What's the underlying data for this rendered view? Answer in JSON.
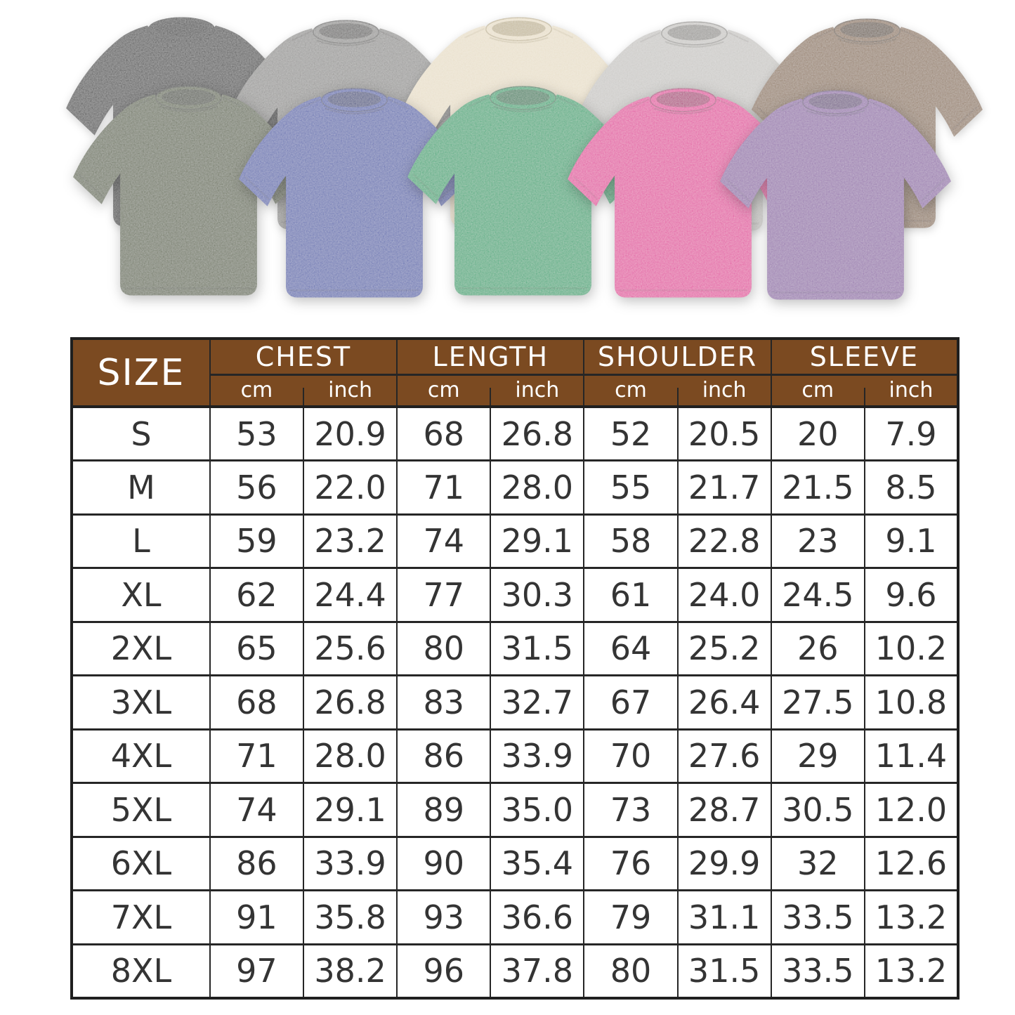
{
  "page": {
    "background": "#ffffff"
  },
  "hero": {
    "description": "ten acid-washed oversized t-shirts in two overlapping rows",
    "shirts": [
      {
        "name": "black",
        "row": "back",
        "color": "#2f2f2f",
        "shade": "#131313"
      },
      {
        "name": "gray",
        "row": "back",
        "color": "#8e8d8b",
        "shade": "#585755"
      },
      {
        "name": "cream",
        "row": "back",
        "color": "#e7ddc6",
        "shade": "#c0b392"
      },
      {
        "name": "light-gray",
        "row": "back",
        "color": "#c6c4c1",
        "shade": "#92908c"
      },
      {
        "name": "brown",
        "row": "back",
        "color": "#8a6e52",
        "shade": "#5c4733"
      },
      {
        "name": "olive",
        "row": "front",
        "color": "#566043",
        "shade": "#323b24"
      },
      {
        "name": "blue",
        "row": "front",
        "color": "#4c5caa",
        "shade": "#2c3877"
      },
      {
        "name": "green",
        "row": "front",
        "color": "#18a26c",
        "shade": "#0a744a"
      },
      {
        "name": "pink",
        "row": "front",
        "color": "#e1379a",
        "shade": "#a81d70"
      },
      {
        "name": "purple",
        "row": "front",
        "color": "#8d65a6",
        "shade": "#624379"
      }
    ]
  },
  "table": {
    "header_bg": "#7b4a21",
    "header_text_color": "#ffffff",
    "border_color": "#262626",
    "size_label": "SIZE",
    "groups": [
      {
        "label": "CHEST"
      },
      {
        "label": "LENGTH"
      },
      {
        "label": "SHOULDER"
      },
      {
        "label": "SLEEVE"
      }
    ],
    "unit_labels": [
      "cm",
      "inch"
    ],
    "rows": [
      {
        "size": "S",
        "values": [
          "53",
          "20.9",
          "68",
          "26.8",
          "52",
          "20.5",
          "20",
          "7.9"
        ]
      },
      {
        "size": "M",
        "values": [
          "56",
          "22.0",
          "71",
          "28.0",
          "55",
          "21.7",
          "21.5",
          "8.5"
        ]
      },
      {
        "size": "L",
        "values": [
          "59",
          "23.2",
          "74",
          "29.1",
          "58",
          "22.8",
          "23",
          "9.1"
        ]
      },
      {
        "size": "XL",
        "values": [
          "62",
          "24.4",
          "77",
          "30.3",
          "61",
          "24.0",
          "24.5",
          "9.6"
        ]
      },
      {
        "size": "2XL",
        "values": [
          "65",
          "25.6",
          "80",
          "31.5",
          "64",
          "25.2",
          "26",
          "10.2"
        ]
      },
      {
        "size": "3XL",
        "values": [
          "68",
          "26.8",
          "83",
          "32.7",
          "67",
          "26.4",
          "27.5",
          "10.8"
        ]
      },
      {
        "size": "4XL",
        "values": [
          "71",
          "28.0",
          "86",
          "33.9",
          "70",
          "27.6",
          "29",
          "11.4"
        ]
      },
      {
        "size": "5XL",
        "values": [
          "74",
          "29.1",
          "89",
          "35.0",
          "73",
          "28.7",
          "30.5",
          "12.0"
        ]
      },
      {
        "size": "6XL",
        "values": [
          "86",
          "33.9",
          "90",
          "35.4",
          "76",
          "29.9",
          "32",
          "12.6"
        ]
      },
      {
        "size": "7XL",
        "values": [
          "91",
          "35.8",
          "93",
          "36.6",
          "79",
          "31.1",
          "33.5",
          "13.2"
        ]
      },
      {
        "size": "8XL",
        "values": [
          "97",
          "38.2",
          "96",
          "37.8",
          "80",
          "31.5",
          "33.5",
          "13.2"
        ]
      }
    ]
  },
  "chart_data": {
    "type": "table",
    "title": "T-shirt size chart",
    "columns": [
      "SIZE",
      "CHEST cm",
      "CHEST inch",
      "LENGTH cm",
      "LENGTH inch",
      "SHOULDER cm",
      "SHOULDER inch",
      "SLEEVE cm",
      "SLEEVE inch"
    ],
    "rows": [
      [
        "S",
        53,
        20.9,
        68,
        26.8,
        52,
        20.5,
        20,
        7.9
      ],
      [
        "M",
        56,
        22.0,
        71,
        28.0,
        55,
        21.7,
        21.5,
        8.5
      ],
      [
        "L",
        59,
        23.2,
        74,
        29.1,
        58,
        22.8,
        23,
        9.1
      ],
      [
        "XL",
        62,
        24.4,
        77,
        30.3,
        61,
        24.0,
        24.5,
        9.6
      ],
      [
        "2XL",
        65,
        25.6,
        80,
        31.5,
        64,
        25.2,
        26,
        10.2
      ],
      [
        "3XL",
        68,
        26.8,
        83,
        32.7,
        67,
        26.4,
        27.5,
        10.8
      ],
      [
        "4XL",
        71,
        28.0,
        86,
        33.9,
        70,
        27.6,
        29,
        11.4
      ],
      [
        "5XL",
        74,
        29.1,
        89,
        35.0,
        73,
        28.7,
        30.5,
        12.0
      ],
      [
        "6XL",
        86,
        33.9,
        90,
        35.4,
        76,
        29.9,
        32,
        12.6
      ],
      [
        "7XL",
        91,
        35.8,
        93,
        36.6,
        79,
        31.1,
        33.5,
        13.2
      ],
      [
        "8XL",
        97,
        38.2,
        96,
        37.8,
        80,
        31.5,
        33.5,
        13.2
      ]
    ]
  }
}
